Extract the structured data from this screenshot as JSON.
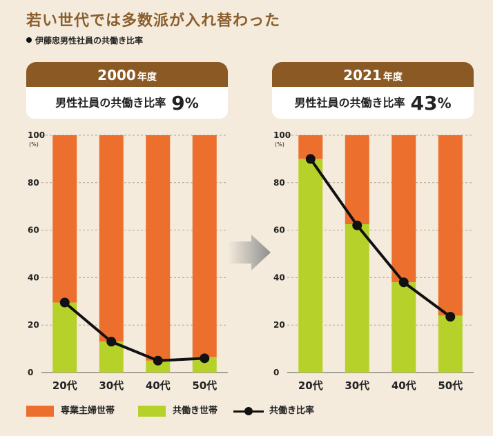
{
  "title": "若い世代では多数派が入れ替わった",
  "subtitle": "伊藤忠男性社員の共働き比率",
  "panels": [
    {
      "year": "2000",
      "year_unit": "年度",
      "summary_label": "男性社員の共働き比率",
      "summary_value": "9",
      "summary_unit": "%"
    },
    {
      "year": "2021",
      "year_unit": "年度",
      "summary_label": "男性社員の共働き比率",
      "summary_value": "43",
      "summary_unit": "%"
    }
  ],
  "legend": {
    "housewife": "専業主婦世帯",
    "dual": "共働き世帯",
    "ratio": "共働き比率"
  },
  "colors": {
    "housewife": "#ec6f2d",
    "dual": "#b6d22a",
    "line": "#111111",
    "header": "#8b5a24",
    "title": "#8a5d2c"
  },
  "chart_data": [
    {
      "type": "bar",
      "panel": "2000年度",
      "categories": [
        "20代",
        "30代",
        "40代",
        "50代"
      ],
      "yunit": "(%)",
      "ylim": [
        0,
        100
      ],
      "yticks": [
        0,
        20,
        40,
        60,
        80,
        100
      ],
      "series": [
        {
          "name": "共働き世帯",
          "values": [
            29.5,
            13,
            5,
            6.5
          ]
        },
        {
          "name": "専業主婦世帯",
          "values": [
            70.5,
            87,
            95,
            93.5
          ]
        }
      ],
      "line": {
        "name": "共働き比率",
        "values": [
          29.5,
          13,
          5,
          6
        ]
      }
    },
    {
      "type": "bar",
      "panel": "2021年度",
      "categories": [
        "20代",
        "30代",
        "40代",
        "50代"
      ],
      "yunit": "(%)",
      "ylim": [
        0,
        100
      ],
      "yticks": [
        0,
        20,
        40,
        60,
        80,
        100
      ],
      "series": [
        {
          "name": "共働き世帯",
          "values": [
            90,
            62.5,
            38,
            24
          ]
        },
        {
          "name": "専業主婦世帯",
          "values": [
            10,
            37.5,
            62,
            76
          ]
        }
      ],
      "line": {
        "name": "共働き比率",
        "values": [
          90,
          62,
          38,
          23.5
        ]
      }
    }
  ]
}
